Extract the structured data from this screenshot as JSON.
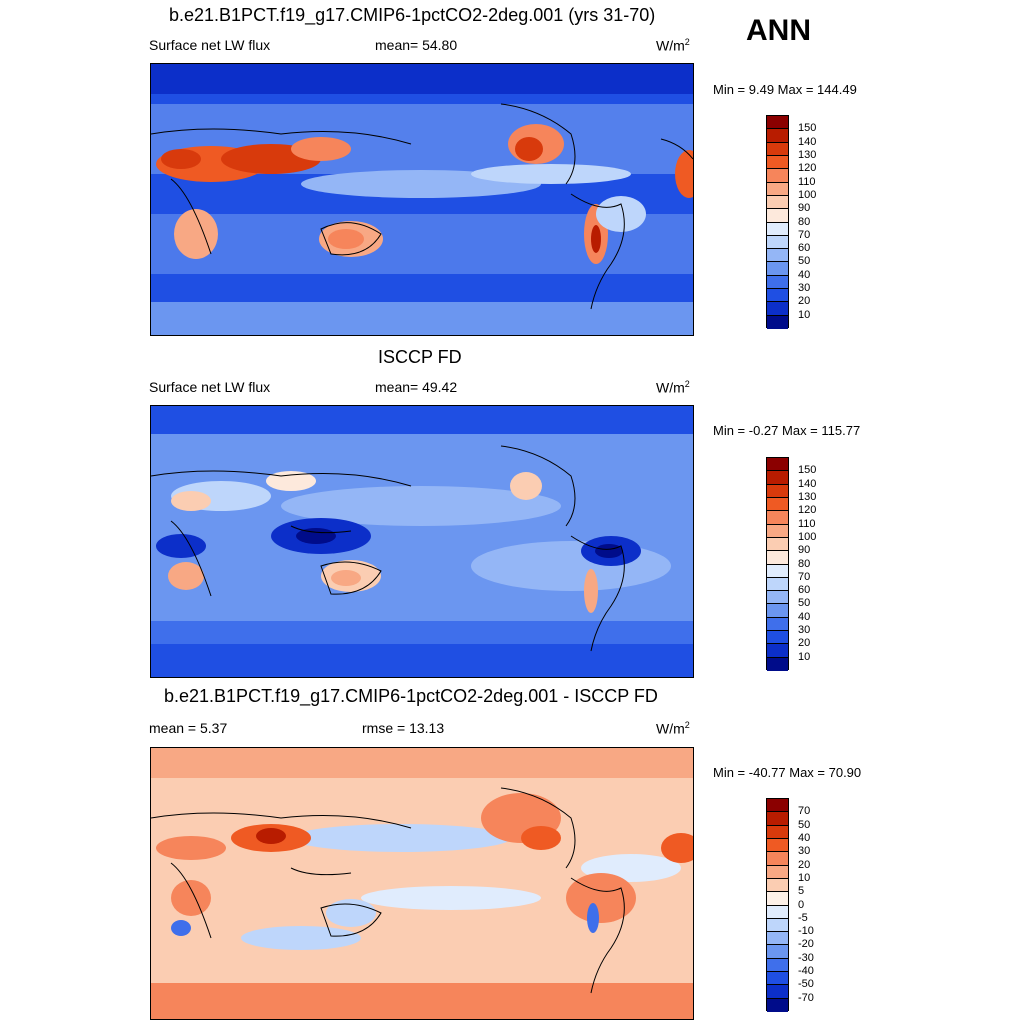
{
  "header": {
    "season": "ANN"
  },
  "panels": [
    {
      "title": "b.e21.B1PCT.f19_g17.CMIP6-1pctCO2-2deg.001 (yrs 31-70)",
      "left_label": "Surface net LW flux",
      "stat_label": "mean=  54.80",
      "units": "W/m",
      "units_exp": "2",
      "minmax": "Min =   9.49 Max = 144.49",
      "colorbar": {
        "ticks": [
          "150",
          "140",
          "130",
          "120",
          "110",
          "100",
          "90",
          "80",
          "70",
          "60",
          "50",
          "40",
          "30",
          "20",
          "10"
        ],
        "colors": [
          "#8b0000",
          "#b81c00",
          "#d83a0c",
          "#ef5a23",
          "#f6855b",
          "#f8a884",
          "#fbcdb2",
          "#fde9dc",
          "#e0ecfd",
          "#bed6fb",
          "#94b6f6",
          "#6b96f0",
          "#3f6feb",
          "#1f4fe3",
          "#0c2fc9",
          "#000c8a"
        ]
      }
    },
    {
      "title": "ISCCP FD",
      "left_label": "Surface net LW flux",
      "stat_label": "mean=  49.42",
      "units": "W/m",
      "units_exp": "2",
      "minmax": "Min =  -0.27 Max = 115.77",
      "colorbar": {
        "ticks": [
          "150",
          "140",
          "130",
          "120",
          "110",
          "100",
          "90",
          "80",
          "70",
          "60",
          "50",
          "40",
          "30",
          "20",
          "10"
        ],
        "colors": [
          "#8b0000",
          "#b81c00",
          "#d83a0c",
          "#ef5a23",
          "#f6855b",
          "#f8a884",
          "#fbcdb2",
          "#fde9dc",
          "#e0ecfd",
          "#bed6fb",
          "#94b6f6",
          "#6b96f0",
          "#3f6feb",
          "#1f4fe3",
          "#0c2fc9",
          "#000c8a"
        ]
      }
    },
    {
      "title": "b.e21.B1PCT.f19_g17.CMIP6-1pctCO2-2deg.001 - ISCCP FD",
      "left_label": "mean =   5.37",
      "stat_label": "rmse =  13.13",
      "units": "W/m",
      "units_exp": "2",
      "minmax": "Min = -40.77 Max =  70.90",
      "colorbar": {
        "ticks": [
          "70",
          "50",
          "40",
          "30",
          "20",
          "10",
          "5",
          "0",
          "-5",
          "-10",
          "-20",
          "-30",
          "-40",
          "-50",
          "-70"
        ],
        "colors": [
          "#8b0000",
          "#b81c00",
          "#d83a0c",
          "#ef5a23",
          "#f6855b",
          "#f8a884",
          "#fbcdb2",
          "#fdf1e8",
          "#e0ecfd",
          "#bed6fb",
          "#94b6f6",
          "#6b96f0",
          "#3f6feb",
          "#1f4fe3",
          "#0c2fc9",
          "#000c8a"
        ]
      }
    }
  ]
}
